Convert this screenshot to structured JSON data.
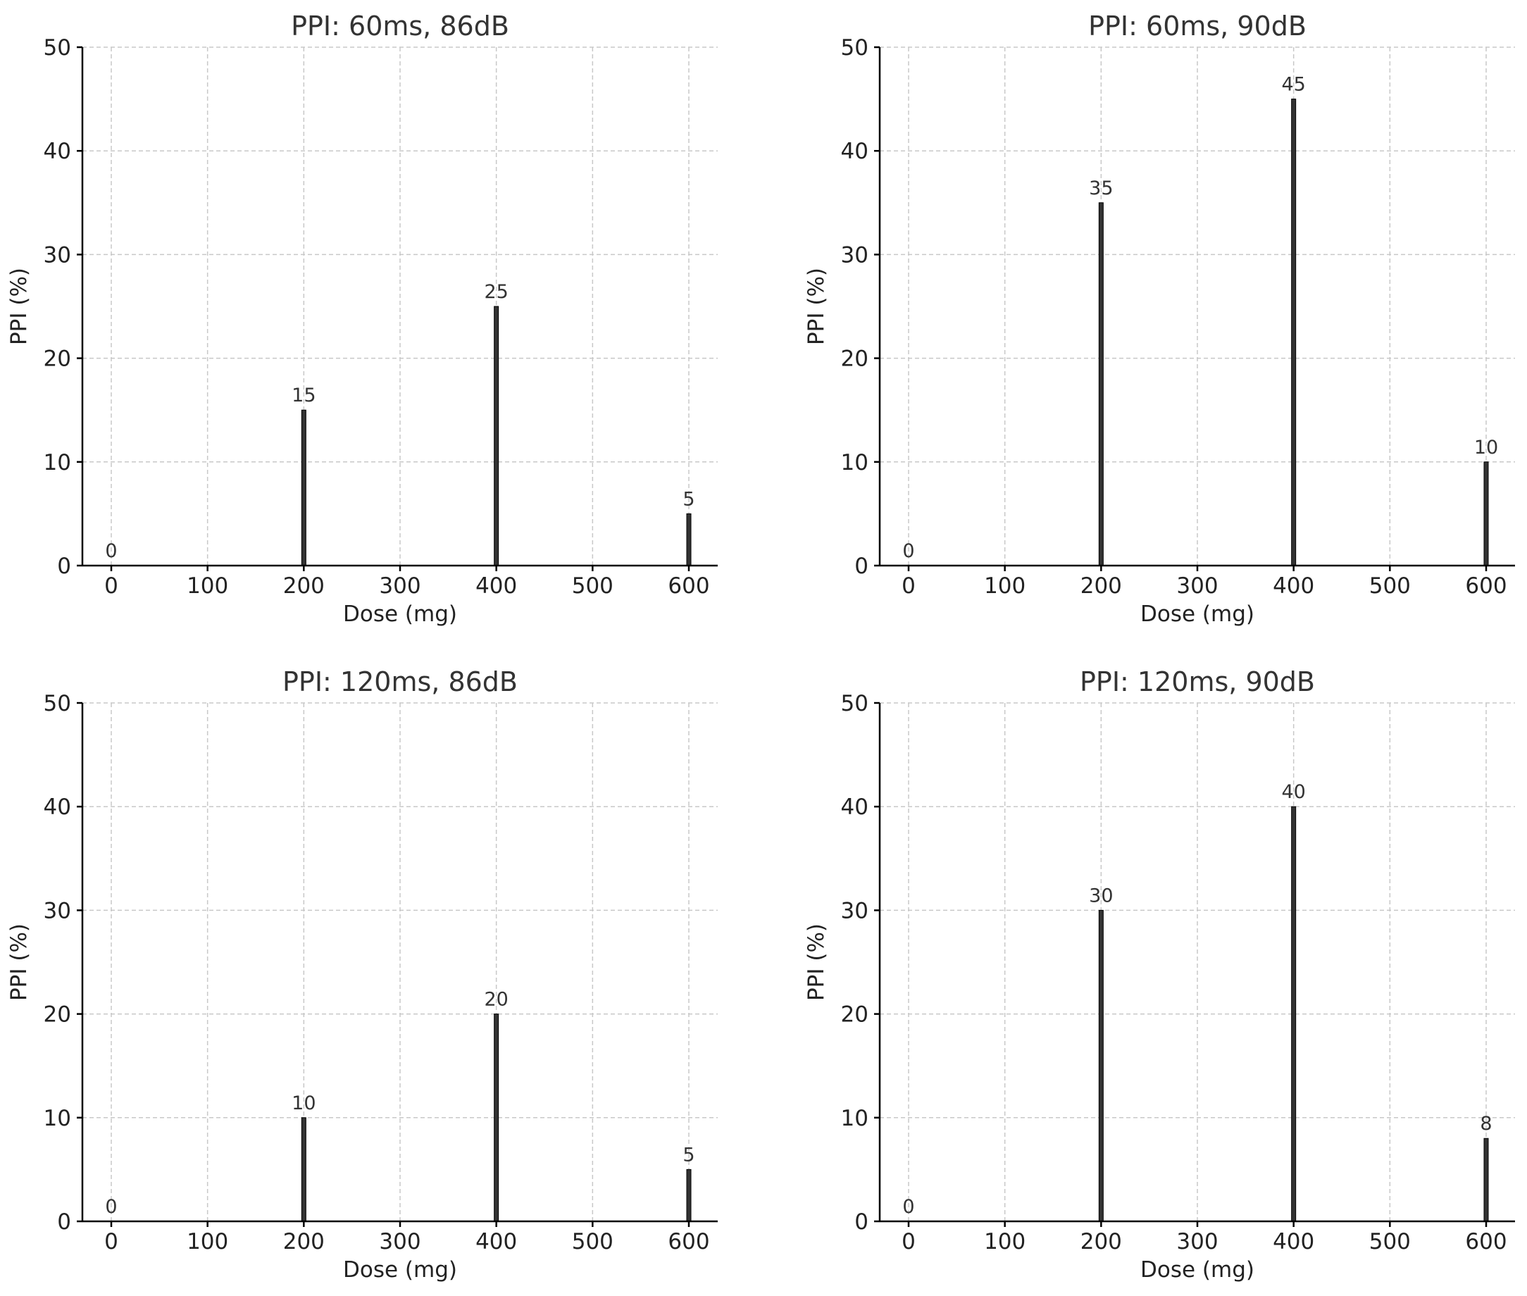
{
  "chart_data": [
    {
      "type": "bar",
      "title": "PPI: 60ms, 86dB",
      "xlabel": "Dose (mg)",
      "ylabel": "PPI (%)",
      "x": [
        0,
        200,
        400,
        600
      ],
      "values": [
        0,
        15,
        25,
        5
      ],
      "xticks": [
        0,
        100,
        200,
        300,
        400,
        500,
        600
      ],
      "yticks": [
        0,
        10,
        20,
        30,
        40,
        50
      ],
      "xlim": [
        -30,
        630
      ],
      "ylim": [
        0,
        50
      ],
      "grid": true,
      "bar_color": "#333333"
    },
    {
      "type": "bar",
      "title": "PPI: 60ms, 90dB",
      "xlabel": "Dose (mg)",
      "ylabel": "PPI (%)",
      "x": [
        0,
        200,
        400,
        600
      ],
      "values": [
        0,
        35,
        45,
        10
      ],
      "xticks": [
        0,
        100,
        200,
        300,
        400,
        500,
        600
      ],
      "yticks": [
        0,
        10,
        20,
        30,
        40,
        50
      ],
      "xlim": [
        -30,
        630
      ],
      "ylim": [
        0,
        50
      ],
      "grid": true,
      "bar_color": "#333333"
    },
    {
      "type": "bar",
      "title": "PPI: 120ms, 86dB",
      "xlabel": "Dose (mg)",
      "ylabel": "PPI (%)",
      "x": [
        0,
        200,
        400,
        600
      ],
      "values": [
        0,
        10,
        20,
        5
      ],
      "xticks": [
        0,
        100,
        200,
        300,
        400,
        500,
        600
      ],
      "yticks": [
        0,
        10,
        20,
        30,
        40,
        50
      ],
      "xlim": [
        -30,
        630
      ],
      "ylim": [
        0,
        50
      ],
      "grid": true,
      "bar_color": "#333333"
    },
    {
      "type": "bar",
      "title": "PPI: 120ms, 90dB",
      "xlabel": "Dose (mg)",
      "ylabel": "PPI (%)",
      "x": [
        0,
        200,
        400,
        600
      ],
      "values": [
        0,
        30,
        40,
        8
      ],
      "xticks": [
        0,
        100,
        200,
        300,
        400,
        500,
        600
      ],
      "yticks": [
        0,
        10,
        20,
        30,
        40,
        50
      ],
      "xlim": [
        -30,
        630
      ],
      "ylim": [
        0,
        50
      ],
      "grid": true,
      "bar_color": "#333333"
    }
  ]
}
